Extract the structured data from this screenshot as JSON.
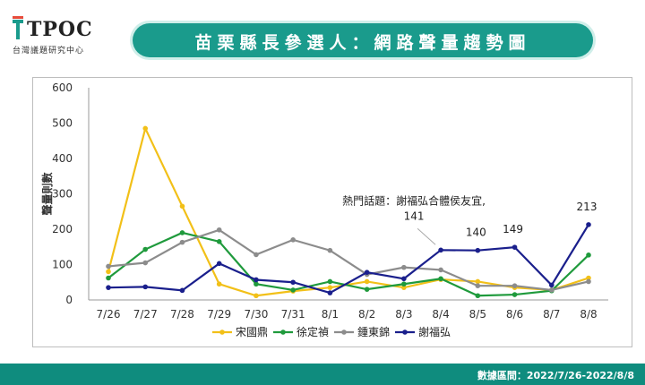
{
  "header": {
    "logo_text": "TPOC",
    "logo_sub": "台灣議題研究中心",
    "title": "苗栗縣長參選人：網路聲量趨勢圖"
  },
  "footer": {
    "date_range": "數據區間：2022/7/26-2022/8/8"
  },
  "colors": {
    "accent": "#1a9b8c",
    "footer": "#0f8c7e",
    "宋國鼎": "#f2c018",
    "徐定禎": "#1f9a3c",
    "鍾東錦": "#8c8c8c",
    "謝福弘": "#1a1f8c"
  },
  "chart_data": {
    "type": "line",
    "title": "",
    "xlabel": "",
    "ylabel": "聲量則數",
    "ylim": [
      0,
      600
    ],
    "yticks": [
      0,
      100,
      200,
      300,
      400,
      500,
      600
    ],
    "grid": false,
    "legend": "bottom",
    "categories": [
      "7/26",
      "7/27",
      "7/28",
      "7/29",
      "7/30",
      "7/31",
      "8/1",
      "8/2",
      "8/3",
      "8/4",
      "8/5",
      "8/6",
      "8/7",
      "8/8"
    ],
    "series": [
      {
        "name": "宋國鼎",
        "color": "#f2c018",
        "values": [
          80,
          485,
          265,
          45,
          12,
          25,
          35,
          52,
          35,
          58,
          52,
          35,
          28,
          62
        ]
      },
      {
        "name": "徐定禎",
        "color": "#1f9a3c",
        "values": [
          62,
          143,
          190,
          165,
          45,
          28,
          52,
          30,
          45,
          60,
          12,
          15,
          26,
          127
        ]
      },
      {
        "name": "鍾東錦",
        "color": "#8c8c8c",
        "values": [
          95,
          105,
          163,
          198,
          128,
          170,
          140,
          72,
          92,
          85,
          40,
          40,
          28,
          52
        ]
      },
      {
        "name": "謝福弘",
        "color": "#1a1f8c",
        "values": [
          35,
          37,
          27,
          103,
          57,
          50,
          20,
          78,
          60,
          141,
          140,
          149,
          42,
          213
        ]
      }
    ],
    "annotations": [
      {
        "category": "8/4",
        "series": "謝福弘",
        "text": "熱門話題：謝福弘合體侯友宜,",
        "value_text": "141"
      },
      {
        "category": "8/5",
        "series": "謝福弘",
        "value_text": "140"
      },
      {
        "category": "8/6",
        "series": "謝福弘",
        "value_text": "149"
      },
      {
        "category": "8/8",
        "series": "謝福弘",
        "value_text": "213"
      }
    ]
  }
}
